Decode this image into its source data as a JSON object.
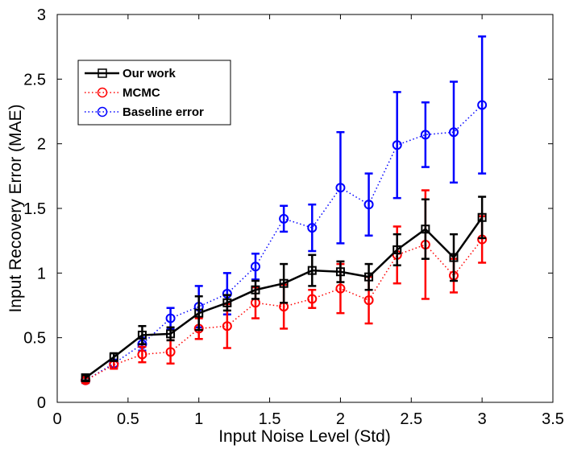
{
  "chart_data": {
    "type": "line",
    "title": "",
    "xlabel": "Input Noise Level (Std)",
    "ylabel": "Input Recovery Error (MAE)",
    "xlim": [
      0,
      3.5
    ],
    "ylim": [
      0,
      3
    ],
    "xticks": [
      0,
      0.5,
      1,
      1.5,
      2,
      2.5,
      3,
      3.5
    ],
    "xtick_labels": [
      "0",
      "0.5",
      "1",
      "1.5",
      "2",
      "2.5",
      "3",
      "3.5"
    ],
    "yticks": [
      0,
      0.5,
      1,
      1.5,
      2,
      2.5,
      3
    ],
    "ytick_labels": [
      "0",
      "0.5",
      "1",
      "1.5",
      "2",
      "2.5",
      "3"
    ],
    "legend_position": "top-left",
    "x": [
      0.2,
      0.4,
      0.6,
      0.8,
      1.0,
      1.2,
      1.4,
      1.6,
      1.8,
      2.0,
      2.2,
      2.4,
      2.6,
      2.8,
      3.0
    ],
    "series": [
      {
        "name": "Our work",
        "color": "#000000",
        "line_style": "solid",
        "marker": "square",
        "values": [
          0.19,
          0.35,
          0.52,
          0.53,
          0.69,
          0.77,
          0.87,
          0.92,
          1.02,
          1.01,
          0.97,
          1.18,
          1.34,
          1.12,
          1.43
        ],
        "errors": [
          0.02,
          0.03,
          0.07,
          0.05,
          0.13,
          0.06,
          0.07,
          0.15,
          0.12,
          0.08,
          0.1,
          0.12,
          0.23,
          0.18,
          0.16
        ]
      },
      {
        "name": "MCMC",
        "color": "#ff0000",
        "line_style": "dotted",
        "marker": "circle",
        "values": [
          0.17,
          0.29,
          0.37,
          0.39,
          0.57,
          0.59,
          0.77,
          0.74,
          0.8,
          0.88,
          0.79,
          1.14,
          1.22,
          0.98,
          1.26
        ],
        "errors": [
          0.02,
          0.03,
          0.06,
          0.09,
          0.08,
          0.17,
          0.12,
          0.17,
          0.07,
          0.19,
          0.18,
          0.22,
          0.42,
          0.13,
          0.18
        ]
      },
      {
        "name": "Baseline error",
        "color": "#0000ff",
        "line_style": "dotted",
        "marker": "circle",
        "values": [
          0.17,
          0.3,
          0.45,
          0.65,
          0.74,
          0.84,
          1.05,
          1.42,
          1.35,
          1.66,
          1.53,
          1.99,
          2.07,
          2.09,
          2.3
        ],
        "errors": [
          0.02,
          0.03,
          0.05,
          0.08,
          0.16,
          0.16,
          0.1,
          0.1,
          0.18,
          0.43,
          0.24,
          0.41,
          0.25,
          0.39,
          0.53
        ]
      }
    ]
  }
}
